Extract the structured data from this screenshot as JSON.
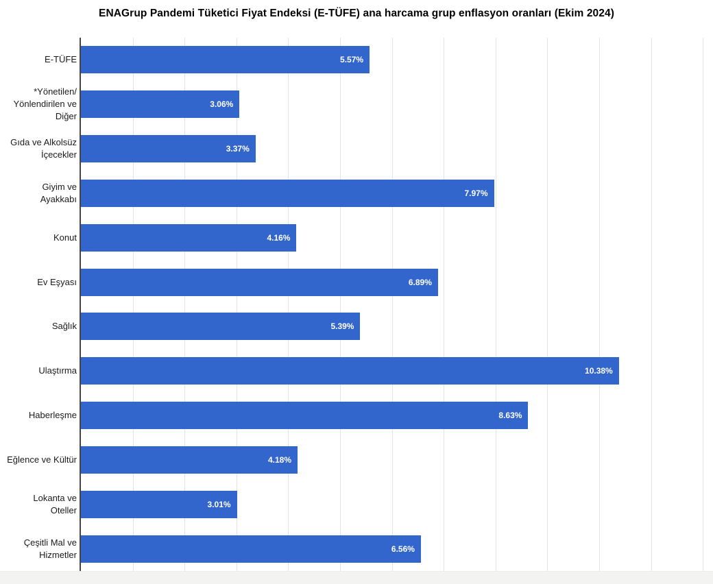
{
  "title": "ENAGrup Pandemi Tüketici Fiyat Endeksi (E-TÜFE) ana harcama grup enflasyon oranları (Ekim 2024)",
  "chart_data": {
    "type": "bar",
    "orientation": "horizontal",
    "title": "ENAGrup Pandemi Tüketici Fiyat Endeksi (E-TÜFE) ana harcama grup enflasyon oranları (Ekim 2024)",
    "categories": [
      "E-TÜFE",
      "*Yönetilen/\nYönlendirilen ve\nDiğer",
      "Gıda ve Alkolsüz\nİçecekler",
      "Giyim ve\nAyakkabı",
      "Konut",
      "Ev Eşyası",
      "Sağlık",
      "Ulaştırma",
      "Haberleşme",
      "Eğlence ve Kültür",
      "Lokanta ve\nOteller",
      "Çeşitli Mal ve\nHizmetler"
    ],
    "values": [
      5.57,
      3.06,
      3.37,
      7.97,
      4.16,
      6.89,
      5.39,
      10.38,
      8.63,
      4.18,
      3.01,
      6.56
    ],
    "value_labels": [
      "5.57%",
      "3.06%",
      "3.37%",
      "7.97%",
      "4.16%",
      "6.89%",
      "5.39%",
      "10.38%",
      "8.63%",
      "4.18%",
      "3.01%",
      "6.56%"
    ],
    "xlabel": "",
    "ylabel": "",
    "xlim": [
      0,
      12.2
    ],
    "gridline_interval": 1,
    "grid": true,
    "legend": "none",
    "x_tick_labels_visible": false,
    "bar_color": "#3366cc",
    "value_label_color": "#ffffff",
    "gridline_color": "#e4e4e4",
    "axis_line_color": "#444444"
  }
}
